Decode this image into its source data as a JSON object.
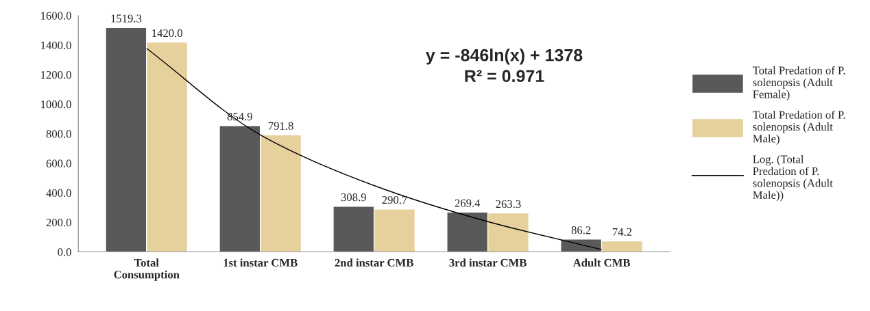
{
  "chart_data": {
    "type": "bar",
    "categories": [
      "Total\nConsumption",
      "1st instar CMB",
      "2nd instar CMB",
      "3rd instar CMB",
      "Adult CMB"
    ],
    "series": [
      {
        "name": "Total Predation of P.\nsolenopsis (Adult\nFemale)",
        "color": "#595959",
        "values": [
          1519.3,
          854.9,
          308.9,
          269.4,
          86.2
        ],
        "value_labels": [
          "1519.3",
          "854.9",
          "308.9",
          "269.4",
          "86.2"
        ]
      },
      {
        "name": "Total Predation of P.\nsolenopsis (Adult\nMale)",
        "color": "#e6d09c",
        "values": [
          1420.0,
          791.8,
          290.7,
          263.3,
          74.2
        ],
        "value_labels": [
          "1420.0",
          "791.8",
          "290.7",
          "263.3",
          "74.2"
        ]
      },
      {
        "name": "Log. (Total\nPredation of P.\nsolenopsis (Adult\nMale))",
        "type": "line",
        "color": "#000000",
        "values": [
          1378,
          792,
          449,
          205,
          16
        ]
      }
    ],
    "ylim": [
      0,
      1600
    ],
    "yticks": [
      {
        "value": 0,
        "label": "0.0"
      },
      {
        "value": 200,
        "label": "200.0"
      },
      {
        "value": 400,
        "label": "400.0"
      },
      {
        "value": 600,
        "label": "600.0"
      },
      {
        "value": 800,
        "label": "800.0"
      },
      {
        "value": 1000,
        "label": "1000.0"
      },
      {
        "value": 1200,
        "label": "1200.0"
      },
      {
        "value": 1400,
        "label": "1400.0"
      },
      {
        "value": 1600,
        "label": "1600.0"
      }
    ],
    "annotations": [
      "y = -846ln(x) + 1378\nR² = 0.971"
    ],
    "legend": "right",
    "grid": false
  }
}
